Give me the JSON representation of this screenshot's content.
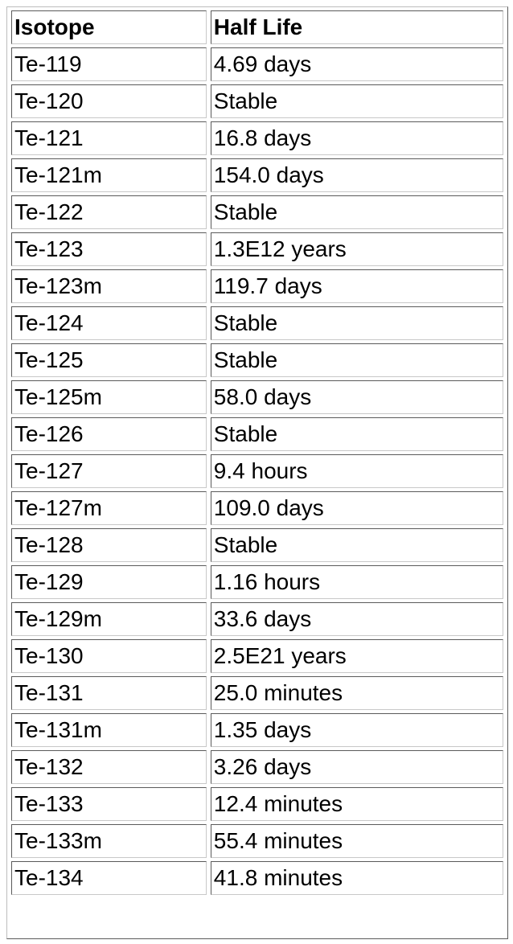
{
  "table": {
    "headers": [
      "Isotope",
      "Half Life"
    ],
    "rows": [
      [
        "Te-119",
        "4.69 days"
      ],
      [
        "Te-120",
        "Stable"
      ],
      [
        "Te-121",
        "16.8 days"
      ],
      [
        "Te-121m",
        "154.0 days"
      ],
      [
        "Te-122",
        "Stable"
      ],
      [
        "Te-123",
        "1.3E12 years"
      ],
      [
        "Te-123m",
        "119.7 days"
      ],
      [
        "Te-124",
        "Stable"
      ],
      [
        "Te-125",
        "Stable"
      ],
      [
        "Te-125m",
        "58.0 days"
      ],
      [
        "Te-126",
        "Stable"
      ],
      [
        "Te-127",
        "9.4 hours"
      ],
      [
        "Te-127m",
        "109.0 days"
      ],
      [
        "Te-128",
        "Stable"
      ],
      [
        "Te-129",
        "1.16 hours"
      ],
      [
        "Te-129m",
        "33.6 days"
      ],
      [
        "Te-130",
        "2.5E21 years"
      ],
      [
        "Te-131",
        "25.0 minutes"
      ],
      [
        "Te-131m",
        "1.35 days"
      ],
      [
        "Te-132",
        "3.26 days"
      ],
      [
        "Te-133",
        "12.4 minutes"
      ],
      [
        "Te-133m",
        "55.4 minutes"
      ],
      [
        "Te-134",
        "41.8 minutes"
      ]
    ]
  }
}
